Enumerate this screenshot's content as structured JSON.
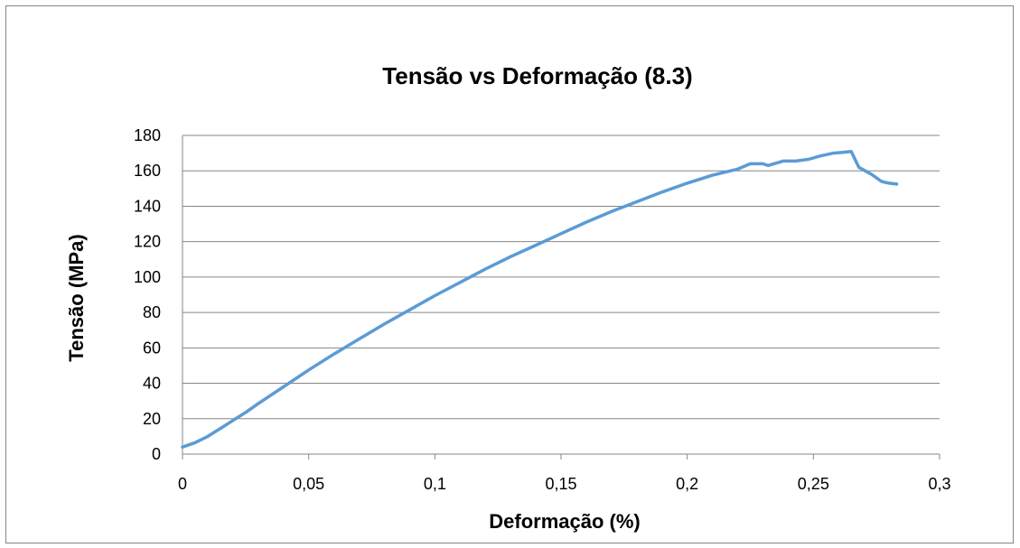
{
  "chart_data": {
    "type": "line",
    "title": "Tensão vs Deformação (8.3)",
    "xlabel": "Deformação (%)",
    "ylabel": "Tensão (MPa)",
    "xlim": [
      0,
      0.3
    ],
    "ylim": [
      0,
      180
    ],
    "x_ticks": [
      0,
      0.05,
      0.1,
      0.15,
      0.2,
      0.25,
      0.3
    ],
    "x_tick_labels": [
      "0",
      "0,05",
      "0,1",
      "0,15",
      "0,2",
      "0,25",
      "0,3"
    ],
    "y_ticks": [
      0,
      20,
      40,
      60,
      80,
      100,
      120,
      140,
      160,
      180
    ],
    "y_tick_labels": [
      "0",
      "20",
      "40",
      "60",
      "80",
      "100",
      "120",
      "140",
      "160",
      "180"
    ],
    "grid": true,
    "line_color": "#5b9bd5",
    "series": [
      {
        "x": [
          0,
          0.005,
          0.01,
          0.015,
          0.02,
          0.025,
          0.03,
          0.04,
          0.05,
          0.06,
          0.07,
          0.08,
          0.09,
          0.1,
          0.11,
          0.12,
          0.13,
          0.14,
          0.15,
          0.16,
          0.17,
          0.18,
          0.19,
          0.2,
          0.21,
          0.22,
          0.225,
          0.23,
          0.232,
          0.238,
          0.243,
          0.248,
          0.253,
          0.258,
          0.262,
          0.265,
          0.268,
          0.273,
          0.277,
          0.28,
          0.283
        ],
        "y": [
          4,
          6.5,
          10,
          14.5,
          19,
          23.5,
          28.5,
          38,
          47.5,
          56.5,
          65,
          73.5,
          81.5,
          89.5,
          97,
          104.5,
          111.5,
          118,
          124.5,
          131,
          137,
          142.5,
          148,
          153,
          157.5,
          161,
          164,
          164,
          163,
          165.5,
          165.5,
          166.5,
          168.5,
          170,
          170.5,
          171,
          162,
          158,
          154,
          153,
          152.5
        ]
      }
    ]
  }
}
